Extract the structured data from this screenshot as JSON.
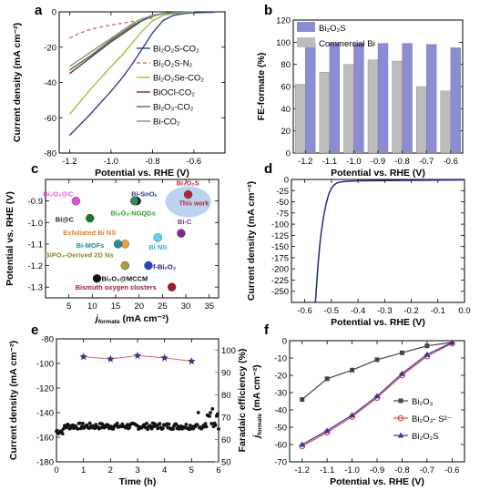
{
  "chart_data": [
    {
      "panel": "a",
      "type": "line",
      "xlabel": "Potential vs. RHE (V)",
      "ylabel": "Current density (mA cm⁻²)",
      "xlim": [
        -1.25,
        -0.45
      ],
      "ylim": [
        -80,
        0
      ],
      "xticks": [
        -1.2,
        -1.0,
        -0.8,
        -0.6
      ],
      "yticks": [
        -80,
        -60,
        -40,
        -20,
        0
      ],
      "legend_position": "right",
      "series": [
        {
          "name": "Bi₂O₂S-CO₂",
          "color": "#303f8f",
          "dash": "solid",
          "x": [
            -1.2,
            -1.1,
            -1.0,
            -0.95,
            -0.9,
            -0.85,
            -0.8,
            -0.75,
            -0.7,
            -0.65,
            -0.6,
            -0.5
          ],
          "y": [
            -70,
            -58,
            -45,
            -38,
            -30,
            -21,
            -12,
            -5,
            -2,
            -1,
            -0.5,
            -0.2
          ]
        },
        {
          "name": "Bi₂O₂S-N₂",
          "color": "#e06666",
          "dash": "dashed",
          "x": [
            -1.2,
            -1.15,
            -1.1,
            -1.05,
            -1.0,
            -0.95,
            -0.9,
            -0.85,
            -0.8
          ],
          "y": [
            -15,
            -12,
            -10,
            -8.5,
            -7.5,
            -6.5,
            -5.5,
            -4.5,
            -3.5
          ]
        },
        {
          "name": "Bi₂O₂Se-CO₂",
          "color": "#8dc63f",
          "dash": "solid",
          "x": [
            -1.2,
            -1.1,
            -1.0,
            -0.95,
            -0.9,
            -0.85,
            -0.8,
            -0.75,
            -0.7,
            -0.6
          ],
          "y": [
            -58,
            -44,
            -31,
            -25,
            -18,
            -11,
            -5,
            -2,
            -1,
            -0.2
          ]
        },
        {
          "name": "BiOCl-CO₂",
          "color": "#7b2a3a",
          "dash": "solid",
          "x": [
            -1.2,
            -1.1,
            -1.0,
            -0.95,
            -0.9,
            -0.85,
            -0.8,
            -0.75,
            -0.7,
            -0.65,
            -0.6
          ],
          "y": [
            -35,
            -26,
            -17,
            -13,
            -9,
            -5,
            -2,
            -1,
            -0.5,
            -0.3,
            -0.1
          ]
        },
        {
          "name": "Bi₂O₃-CO₂",
          "color": "#2e7d32",
          "dash": "solid",
          "x": [
            -1.2,
            -1.1,
            -1.0,
            -0.95,
            -0.9,
            -0.85,
            -0.8,
            -0.75,
            -0.7,
            -0.6
          ],
          "y": [
            -33,
            -25,
            -16,
            -12,
            -8,
            -5,
            -2.5,
            -1,
            -0.5,
            -0.1
          ]
        },
        {
          "name": "Bi-CO₂",
          "color": "#8a8a8a",
          "dash": "solid",
          "x": [
            -1.2,
            -1.1,
            -1.0,
            -0.95,
            -0.9,
            -0.85,
            -0.8,
            -0.75,
            -0.7,
            -0.6
          ],
          "y": [
            -31,
            -23,
            -15,
            -11,
            -7,
            -4,
            -2,
            -1,
            -0.4,
            -0.1
          ]
        }
      ]
    },
    {
      "panel": "b",
      "type": "bar",
      "xlabel": "Potential vs. RHE (V)",
      "ylabel": "FE-formate (%)",
      "ylim": [
        0,
        120
      ],
      "yticks": [
        0,
        20,
        40,
        60,
        80,
        100,
        120
      ],
      "categories": [
        "-1.2",
        "-1.1",
        "-1.0",
        "-0.9",
        "-0.8",
        "-0.7",
        "-0.6"
      ],
      "legend_position": "top-left",
      "series": [
        {
          "name": "Bi₂O₂S",
          "color": "#8c8cd6",
          "values": [
            99,
            99,
            99,
            99,
            99,
            98,
            95
          ]
        },
        {
          "name": "Commercial Bi",
          "color": "#bcbcbc",
          "values": [
            62,
            73,
            80,
            84,
            83,
            60,
            56
          ]
        }
      ]
    },
    {
      "panel": "c",
      "type": "scatter",
      "xlabel": "j formate (mA cm⁻²)",
      "xlabel_main": "j",
      "xlabel_sub": "formate",
      "xlabel_unit": " (mA cm⁻²)",
      "ylabel": "Potential vs. RHE (V)",
      "xlim": [
        0,
        37
      ],
      "ylim": [
        -1.35,
        -0.8
      ],
      "xticks": [
        5,
        10,
        15,
        20,
        25,
        30,
        35
      ],
      "yticks": [
        -0.9,
        -1.0,
        -1.1,
        -1.2,
        -1.3
      ],
      "highlight": {
        "x": 30.5,
        "y": -0.87,
        "color": "#a8c8ec"
      },
      "points": [
        {
          "label": "Bi₂O₂S",
          "sublabel": "This work",
          "x": 30.5,
          "y": -0.87,
          "color": "#b22a37",
          "label_color": "#b22a37"
        },
        {
          "label": "Bi₂O₃@C",
          "x": 6.5,
          "y": -0.9,
          "color": "#e34fd9",
          "label_color": "#e34fd9"
        },
        {
          "label": "Bi-SnOₓ",
          "x": 19.5,
          "y": -0.9,
          "color": "#1a1a1a",
          "label_color": "#1a3d8f"
        },
        {
          "label": "Bi₂O₃-NGQDs",
          "x": 19,
          "y": -0.9,
          "color": "#2e8b57",
          "label_color": "#2ca02c"
        },
        {
          "label": "Bi@C",
          "x": 9.5,
          "y": -0.98,
          "color": "#1b7a2e",
          "label_color": "#1a1a1a"
        },
        {
          "label": "Bi-C",
          "x": 29,
          "y": -1.05,
          "color": "#7d2b8b",
          "label_color": "#7d2b8b"
        },
        {
          "label": "Exfoliated Bi NS",
          "x": 17,
          "y": -1.1,
          "color": "#e8a23a",
          "label_color": "#e87d1e"
        },
        {
          "label": "Bi-MOFs",
          "x": 15.5,
          "y": -1.1,
          "color": "#1f8f8f",
          "label_color": "#1f8f8f"
        },
        {
          "label": "Bi NS",
          "x": 24,
          "y": -1.07,
          "color": "#5ad7f0",
          "label_color": "#2aaee0"
        },
        {
          "label": "BiPO₄-Derived 2D Ns",
          "x": 17,
          "y": -1.2,
          "color": "#a8a032",
          "label_color": "#8c8428"
        },
        {
          "label": "f-Bi₂O₃",
          "x": 22,
          "y": -1.2,
          "color": "#2244cc",
          "label_color": "#1a1a6a"
        },
        {
          "label": "Bi₂O₃@MCCM",
          "x": 11,
          "y": -1.26,
          "color": "#111111",
          "label_color": "#111111"
        },
        {
          "label": "Bismuth oxygen clusters",
          "x": 27,
          "y": -1.3,
          "color": "#a01e2a",
          "label_color": "#a01e2a"
        }
      ]
    },
    {
      "panel": "d",
      "type": "line",
      "xlabel": "Potential vs. RHE (V)",
      "ylabel": "Current density (mA cm⁻²)",
      "xlim": [
        -0.65,
        0.0
      ],
      "ylim": [
        -275,
        0
      ],
      "xticks": [
        -0.6,
        -0.5,
        -0.4,
        -0.3,
        -0.2,
        -0.1,
        0.0
      ],
      "xtick_labels": [
        "-0.6",
        "-0.5",
        "-0.4",
        "-0.3",
        "-0.2",
        "-0.1",
        "0.0"
      ],
      "yticks": [
        0,
        -25,
        -50,
        -75,
        -100,
        -125,
        -150,
        -175,
        -200,
        -225,
        -250
      ],
      "series": [
        {
          "name": "",
          "color": "#1f2a8a",
          "x": [
            -0.56,
            -0.555,
            -0.55,
            -0.545,
            -0.54,
            -0.53,
            -0.52,
            -0.51,
            -0.5,
            -0.49,
            -0.48,
            -0.46,
            -0.44,
            -0.4,
            -0.3,
            -0.2,
            -0.1,
            0.0
          ],
          "y": [
            -275,
            -230,
            -190,
            -155,
            -125,
            -85,
            -55,
            -33,
            -20,
            -12,
            -8,
            -5,
            -4,
            -3,
            -2.5,
            -2,
            -1.5,
            -1
          ]
        }
      ]
    },
    {
      "panel": "e",
      "type": "scatter",
      "xlabel": "Time (h)",
      "ylabel": "Current density (mA cm⁻²)",
      "y2label": "Faradaic efficiency (%)",
      "xlim": [
        0,
        6
      ],
      "ylim": [
        -180,
        -80
      ],
      "y2lim": [
        50,
        105
      ],
      "xticks": [
        0,
        1,
        2,
        3,
        4,
        5,
        6
      ],
      "yticks": [
        -80,
        -100,
        -120,
        -140,
        -160,
        -180
      ],
      "y2ticks": [
        50,
        60,
        70,
        80,
        90,
        100
      ],
      "current": {
        "color": "#111111",
        "t_start": 0,
        "t_end": 6,
        "level": -151
      },
      "faradaic_efficiency": {
        "color": "#2a3a8f",
        "line_color": "#e06060",
        "x": [
          1,
          2,
          3,
          4,
          5
        ],
        "y": [
          97,
          96,
          97.5,
          96.5,
          95
        ]
      }
    },
    {
      "panel": "f",
      "type": "line",
      "xlabel": "Potential vs. RHE (V)",
      "ylabel": "j formate (mA cm⁻²)",
      "ylabel_main": "j",
      "ylabel_sub": "formate",
      "ylabel_unit": " (mA cm⁻²)",
      "xlim": [
        -1.25,
        -0.55
      ],
      "ylim": [
        -70,
        0
      ],
      "xticks": [
        -1.2,
        -1.1,
        -1.0,
        -0.9,
        -0.8,
        -0.7,
        -0.6
      ],
      "yticks": [
        0,
        -10,
        -20,
        -30,
        -40,
        -50,
        -60,
        -70
      ],
      "legend_position": "bottom-right",
      "series": [
        {
          "name": "Bi₂O₃",
          "color": "#444444",
          "marker": "square",
          "x": [
            -1.2,
            -1.1,
            -1.0,
            -0.9,
            -0.8,
            -0.7,
            -0.6
          ],
          "y": [
            -34,
            -22,
            -17,
            -11,
            -7,
            -3,
            -1
          ]
        },
        {
          "name": "Bi₂O₃- S²⁻",
          "color": "#e34848",
          "marker": "circle",
          "x": [
            -1.2,
            -1.1,
            -1.0,
            -0.9,
            -0.8,
            -0.7,
            -0.6
          ],
          "y": [
            -61,
            -53,
            -44,
            -33,
            -20,
            -9,
            -1.5
          ]
        },
        {
          "name": "Bi₂O₂S",
          "color": "#2a3aa8",
          "marker": "triangle",
          "x": [
            -1.2,
            -1.1,
            -1.0,
            -0.9,
            -0.8,
            -0.7,
            -0.6
          ],
          "y": [
            -60,
            -52,
            -43,
            -32,
            -19,
            -8,
            -1
          ]
        }
      ]
    }
  ],
  "panel_labels": [
    "a",
    "b",
    "c",
    "d",
    "e",
    "f"
  ]
}
